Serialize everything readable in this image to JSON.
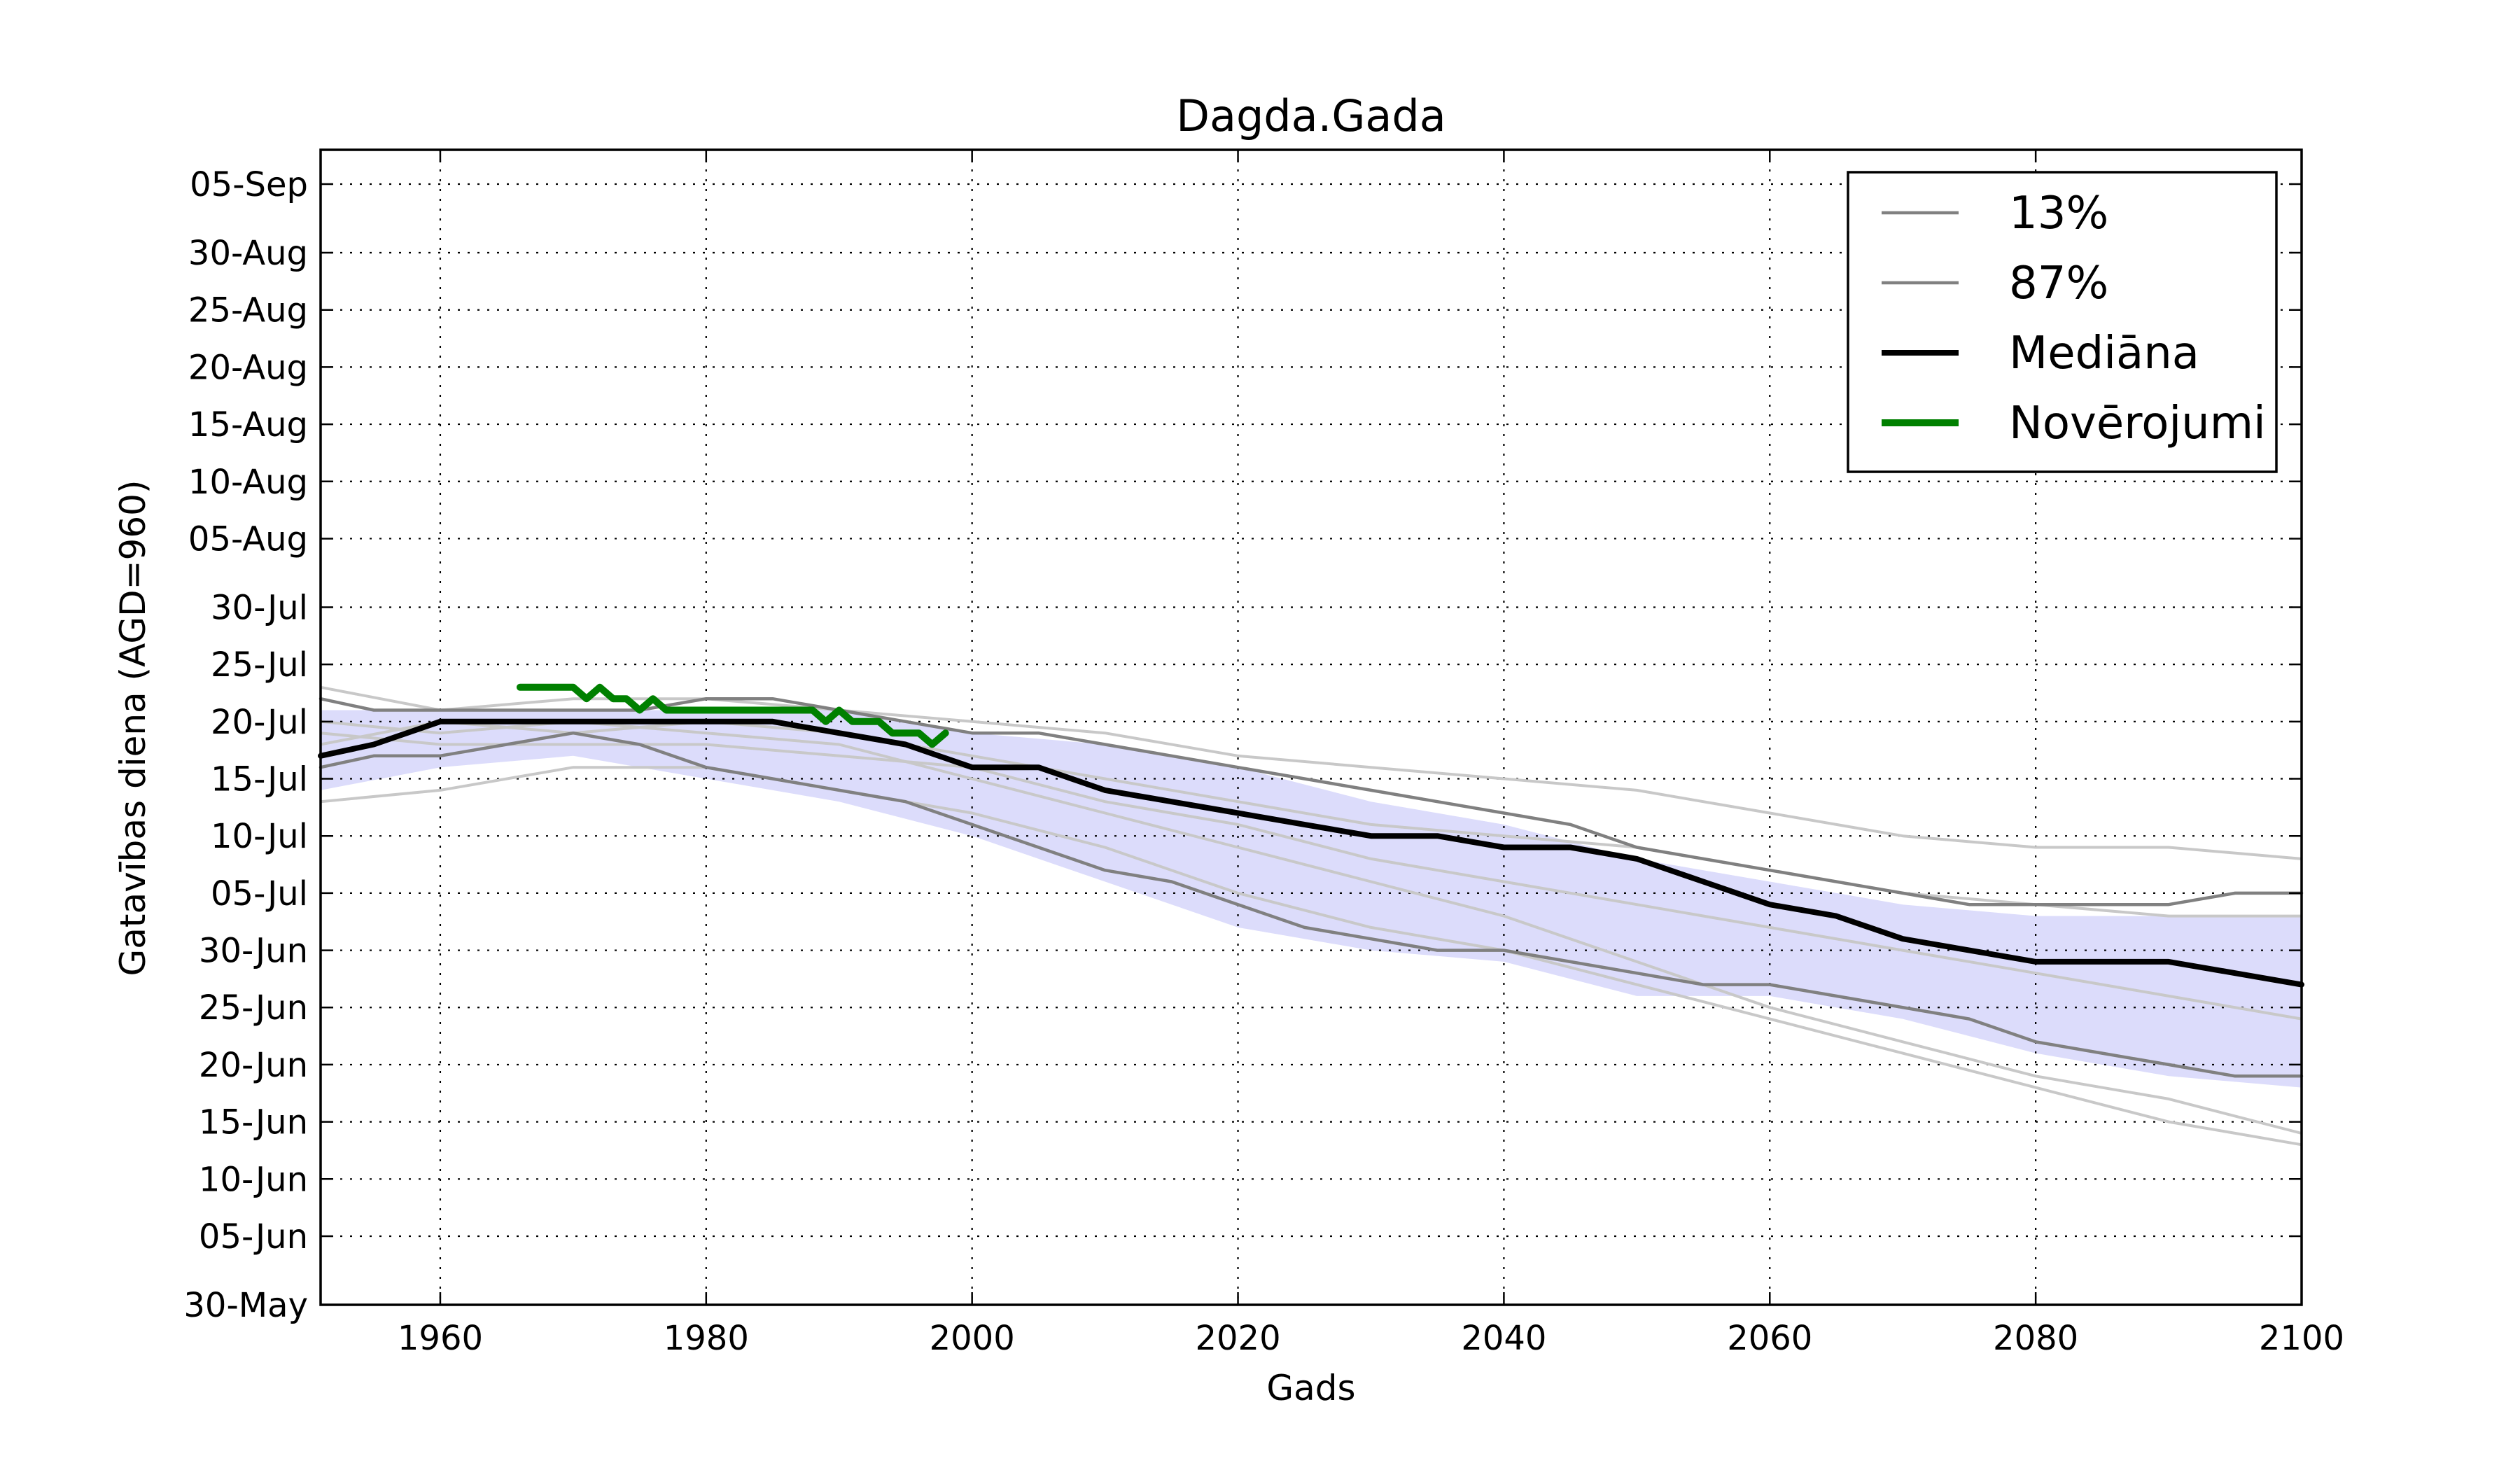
{
  "chart_data": {
    "type": "line",
    "title": "Dagda.Gada",
    "xlabel": "Gads",
    "ylabel": "Gatavības diena (AGD=960)",
    "xlim": [
      1951,
      2100
    ],
    "ylim": [
      "30-May",
      "08-Sep"
    ],
    "grid": true,
    "legend_position": "top-right",
    "x_ticks": [
      "1960",
      "1980",
      "2000",
      "2020",
      "2040",
      "2060",
      "2080",
      "2100"
    ],
    "y_ticks": [
      "30-May",
      "05-Jun",
      "10-Jun",
      "15-Jun",
      "20-Jun",
      "25-Jun",
      "30-Jun",
      "05-Jul",
      "10-Jul",
      "15-Jul",
      "20-Jul",
      "25-Jul",
      "30-Jul",
      "05-Aug",
      "10-Aug",
      "15-Aug",
      "20-Aug",
      "25-Aug",
      "30-Aug",
      "05-Sep"
    ],
    "band": {
      "color": "#dcdcfb",
      "x": [
        1951,
        1960,
        1970,
        1980,
        1990,
        2000,
        2010,
        2020,
        2030,
        2040,
        2050,
        2060,
        2070,
        2080,
        2090,
        2100
      ],
      "lower": [
        "14-Jul",
        "16-Jul",
        "17-Jul",
        "15-Jul",
        "13-Jul",
        "10-Jul",
        "06-Jul",
        "02-Jul",
        "30-Jun",
        "29-Jun",
        "26-Jun",
        "26-Jun",
        "24-Jun",
        "21-Jun",
        "19-Jun",
        "18-Jun"
      ],
      "upper": [
        "21-Jul",
        "21-Jul",
        "21-Jul",
        "21-Jul",
        "21-Jul",
        "19-Jul",
        "18-Jul",
        "16-Jul",
        "13-Jul",
        "11-Jul",
        "08-Jul",
        "06-Jul",
        "04-Jul",
        "03-Jul",
        "03-Jul",
        "03-Jul"
      ]
    },
    "series": [
      {
        "name": "13%",
        "color": "#808080",
        "x": [
          1951,
          1955,
          1960,
          1965,
          1970,
          1975,
          1980,
          1985,
          1990,
          1995,
          2000,
          2005,
          2010,
          2015,
          2020,
          2025,
          2030,
          2035,
          2040,
          2045,
          2050,
          2055,
          2060,
          2065,
          2070,
          2075,
          2080,
          2085,
          2090,
          2095,
          2100
        ],
        "y": [
          "16-Jul",
          "17-Jul",
          "17-Jul",
          "18-Jul",
          "19-Jul",
          "18-Jul",
          "16-Jul",
          "15-Jul",
          "14-Jul",
          "13-Jul",
          "11-Jul",
          "09-Jul",
          "07-Jul",
          "06-Jul",
          "04-Jul",
          "02-Jul",
          "01-Jul",
          "30-Jun",
          "30-Jun",
          "29-Jun",
          "28-Jun",
          "27-Jun",
          "27-Jun",
          "26-Jun",
          "25-Jun",
          "24-Jun",
          "22-Jun",
          "21-Jun",
          "20-Jun",
          "19-Jun",
          "19-Jun"
        ]
      },
      {
        "name": "87%",
        "color": "#808080",
        "x": [
          1951,
          1955,
          1960,
          1965,
          1970,
          1975,
          1980,
          1985,
          1990,
          1995,
          2000,
          2005,
          2010,
          2015,
          2020,
          2025,
          2030,
          2035,
          2040,
          2045,
          2050,
          2055,
          2060,
          2065,
          2070,
          2075,
          2080,
          2085,
          2090,
          2095,
          2100
        ],
        "y": [
          "22-Jul",
          "21-Jul",
          "21-Jul",
          "21-Jul",
          "21-Jul",
          "21-Jul",
          "22-Jul",
          "22-Jul",
          "21-Jul",
          "20-Jul",
          "19-Jul",
          "19-Jul",
          "18-Jul",
          "17-Jul",
          "16-Jul",
          "15-Jul",
          "14-Jul",
          "13-Jul",
          "12-Jul",
          "11-Jul",
          "09-Jul",
          "08-Jul",
          "07-Jul",
          "06-Jul",
          "05-Jul",
          "04-Jul",
          "04-Jul",
          "04-Jul",
          "04-Jul",
          "05-Jul",
          "05-Jul"
        ]
      },
      {
        "name": "Mediāna",
        "color": "#000000",
        "x": [
          1951,
          1955,
          1960,
          1965,
          1970,
          1975,
          1980,
          1985,
          1990,
          1995,
          2000,
          2005,
          2010,
          2015,
          2020,
          2025,
          2030,
          2035,
          2040,
          2045,
          2050,
          2055,
          2060,
          2065,
          2070,
          2075,
          2080,
          2085,
          2090,
          2095,
          2100
        ],
        "y": [
          "17-Jul",
          "18-Jul",
          "20-Jul",
          "20-Jul",
          "20-Jul",
          "20-Jul",
          "20-Jul",
          "20-Jul",
          "19-Jul",
          "18-Jul",
          "16-Jul",
          "16-Jul",
          "14-Jul",
          "13-Jul",
          "12-Jul",
          "11-Jul",
          "10-Jul",
          "10-Jul",
          "09-Jul",
          "09-Jul",
          "08-Jul",
          "06-Jul",
          "04-Jul",
          "03-Jul",
          "01-Jul",
          "30-Jun",
          "29-Jun",
          "29-Jun",
          "29-Jun",
          "28-Jun",
          "27-Jun"
        ]
      },
      {
        "name": "Novērojumi",
        "color": "#008000",
        "x": [
          1966,
          1967,
          1968,
          1969,
          1970,
          1971,
          1972,
          1973,
          1974,
          1975,
          1976,
          1977,
          1978,
          1979,
          1980,
          1981,
          1982,
          1983,
          1984,
          1985,
          1986,
          1987,
          1988,
          1989,
          1990,
          1991,
          1992,
          1993,
          1994,
          1995,
          1996,
          1997,
          1998
        ],
        "y": [
          "23-Jul",
          "23-Jul",
          "23-Jul",
          "23-Jul",
          "23-Jul",
          "22-Jul",
          "23-Jul",
          "22-Jul",
          "22-Jul",
          "21-Jul",
          "22-Jul",
          "21-Jul",
          "21-Jul",
          "21-Jul",
          "21-Jul",
          "21-Jul",
          "21-Jul",
          "21-Jul",
          "21-Jul",
          "21-Jul",
          "21-Jul",
          "21-Jul",
          "21-Jul",
          "20-Jul",
          "21-Jul",
          "20-Jul",
          "20-Jul",
          "20-Jul",
          "19-Jul",
          "19-Jul",
          "19-Jul",
          "18-Jul",
          "19-Jul"
        ]
      }
    ],
    "ensemble_members": {
      "color": "#c8c8c8",
      "x": [
        1951,
        1960,
        1970,
        1980,
        1990,
        2000,
        2010,
        2020,
        2030,
        2040,
        2050,
        2060,
        2070,
        2080,
        2090,
        2100
      ],
      "members": [
        [
          "23-Jul",
          "21-Jul",
          "22-Jul",
          "22-Jul",
          "21-Jul",
          "20-Jul",
          "19-Jul",
          "17-Jul",
          "16-Jul",
          "15-Jul",
          "14-Jul",
          "12-Jul",
          "10-Jul",
          "09-Jul",
          "09-Jul",
          "08-Jul"
        ],
        [
          "13-Jul",
          "14-Jul",
          "16-Jul",
          "16-Jul",
          "14-Jul",
          "12-Jul",
          "09-Jul",
          "05-Jul",
          "02-Jul",
          "30-Jun",
          "27-Jun",
          "24-Jun",
          "21-Jun",
          "18-Jun",
          "15-Jun",
          "13-Jun"
        ],
        [
          "20-Jul",
          "19-Jul",
          "20-Jul",
          "19-Jul",
          "18-Jul",
          "15-Jul",
          "12-Jul",
          "09-Jul",
          "06-Jul",
          "03-Jul",
          "29-Jun",
          "25-Jun",
          "22-Jun",
          "19-Jun",
          "17-Jun",
          "14-Jun"
        ],
        [
          "18-Jul",
          "20-Jul",
          "19-Jul",
          "20-Jul",
          "19-Jul",
          "17-Jul",
          "15-Jul",
          "13-Jul",
          "11-Jul",
          "10-Jul",
          "09-Jul",
          "07-Jul",
          "05-Jul",
          "04-Jul",
          "03-Jul",
          "03-Jul"
        ],
        [
          "19-Jul",
          "18-Jul",
          "18-Jul",
          "18-Jul",
          "17-Jul",
          "16-Jul",
          "13-Jul",
          "11-Jul",
          "08-Jul",
          "06-Jul",
          "04-Jul",
          "02-Jul",
          "30-Jun",
          "28-Jun",
          "26-Jun",
          "24-Jun"
        ]
      ]
    }
  }
}
